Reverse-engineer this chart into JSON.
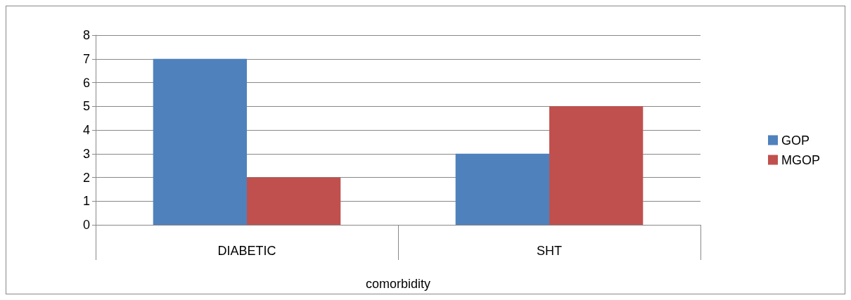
{
  "chart_data": {
    "type": "bar",
    "xlabel": "comorbidity",
    "categories": [
      "DIABETIC",
      "SHT"
    ],
    "series": [
      {
        "name": "GOP",
        "color": "#4f81bd",
        "values": [
          7,
          3
        ]
      },
      {
        "name": "MGOP",
        "color": "#c0504d",
        "values": [
          2,
          5
        ]
      }
    ],
    "ylim": [
      0,
      8
    ],
    "yticks": [
      0,
      1,
      2,
      3,
      4,
      5,
      6,
      7,
      8
    ],
    "grid": "y",
    "legend": "right"
  }
}
